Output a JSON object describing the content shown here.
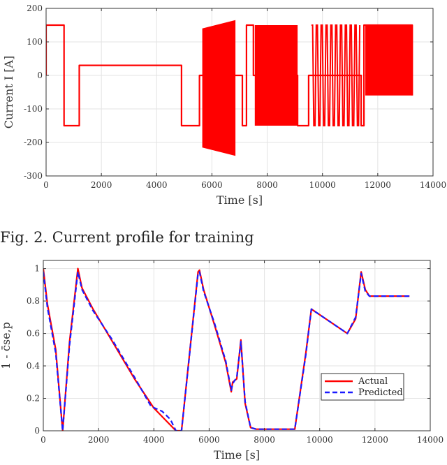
{
  "caption": "Fig. 2. Current profile for training",
  "chart_data": [
    {
      "type": "line",
      "xlabel": "Time [s]",
      "ylabel": "Current I [A]",
      "xlim": [
        0,
        14000
      ],
      "ylim": [
        -300,
        200
      ],
      "xticks": [
        0,
        2000,
        4000,
        6000,
        8000,
        10000,
        12000,
        14000
      ],
      "yticks": [
        -300,
        -200,
        -100,
        0,
        100,
        200
      ],
      "grid": true,
      "series": [
        {
          "color": "#ff0000",
          "x": [
            0,
            0,
            30,
            30,
            650,
            650,
            1200,
            1200,
            4900,
            4900,
            5550,
            5550,
            5650,
            5650,
            7000,
            7000,
            7100,
            7100,
            7250,
            7250,
            7500,
            7500,
            9100,
            9100,
            9500,
            9500,
            11400,
            11400,
            11500,
            11500,
            13250,
            13250
          ],
          "y": [
            0,
            150,
            150,
            150,
            150,
            -150,
            -150,
            30,
            30,
            -150,
            -150,
            0,
            0,
            0,
            0,
            0,
            0,
            -150,
            -150,
            150,
            150,
            0,
            0,
            -150,
            -150,
            0,
            0,
            -150,
            -150,
            150,
            150,
            -60
          ]
        }
      ],
      "bands": [
        {
          "x0": 5650,
          "x1": 6850,
          "ymin_start": -215,
          "ymin_end": -240,
          "ymax_start": 140,
          "ymax_end": 165,
          "color": "#ff0000"
        },
        {
          "x0": 7550,
          "x1": 9100,
          "ymin": -150,
          "ymax": 150,
          "color": "#ff0000"
        },
        {
          "x0": 9600,
          "x1": 11350,
          "ymin": -150,
          "ymax": 150,
          "color": "#ff0000",
          "stripes": true
        },
        {
          "x0": 11550,
          "x1": 13250,
          "ymin": -60,
          "ymax": 150,
          "color": "#ff0000"
        }
      ]
    },
    {
      "type": "line",
      "xlabel": "Time [s]",
      "ylabel": "1 - c̄se,p",
      "xlim": [
        0,
        14000
      ],
      "ylim": [
        0,
        1.05
      ],
      "xticks": [
        0,
        2000,
        4000,
        6000,
        8000,
        10000,
        12000,
        14000
      ],
      "yticks": [
        0,
        0.2,
        0.4,
        0.6,
        0.8,
        1
      ],
      "grid": true,
      "legend": {
        "position": "right",
        "entries": [
          "Actual",
          "Predicted"
        ]
      },
      "series": [
        {
          "name": "Actual",
          "color": "#ff0000",
          "x": [
            0,
            150,
            450,
            700,
            950,
            1250,
            1400,
            1800,
            2500,
            3300,
            4000,
            4800,
            4850,
            5000,
            5600,
            5650,
            5800,
            6200,
            6600,
            6800,
            6850,
            7000,
            7150,
            7300,
            7500,
            7700,
            9100,
            9500,
            9700,
            11000,
            11300,
            11500,
            11650,
            11800,
            13250
          ],
          "y": [
            1.0,
            0.78,
            0.5,
            0.0,
            0.55,
            1.0,
            0.88,
            0.75,
            0.55,
            0.32,
            0.14,
            0.0,
            0.0,
            0.0,
            0.98,
            0.99,
            0.87,
            0.65,
            0.42,
            0.24,
            0.3,
            0.32,
            0.56,
            0.17,
            0.02,
            0.01,
            0.01,
            0.48,
            0.75,
            0.6,
            0.69,
            0.98,
            0.87,
            0.83,
            0.83
          ]
        },
        {
          "name": "Predicted",
          "color": "#1a1aff",
          "x": [
            0,
            150,
            450,
            700,
            950,
            1250,
            1400,
            1800,
            2500,
            3300,
            3900,
            4300,
            4600,
            4800,
            5000,
            5600,
            5650,
            5800,
            6200,
            6600,
            6800,
            6850,
            7000,
            7150,
            7300,
            7500,
            7700,
            9100,
            9500,
            9700,
            11000,
            11300,
            11500,
            11650,
            11800,
            13250
          ],
          "y": [
            0.98,
            0.76,
            0.48,
            0.0,
            0.53,
            0.98,
            0.87,
            0.74,
            0.56,
            0.33,
            0.15,
            0.12,
            0.07,
            0.0,
            0.0,
            0.97,
            0.98,
            0.86,
            0.66,
            0.43,
            0.25,
            0.29,
            0.33,
            0.55,
            0.18,
            0.02,
            0.01,
            0.01,
            0.47,
            0.75,
            0.6,
            0.7,
            0.97,
            0.86,
            0.83,
            0.83
          ]
        }
      ]
    }
  ]
}
